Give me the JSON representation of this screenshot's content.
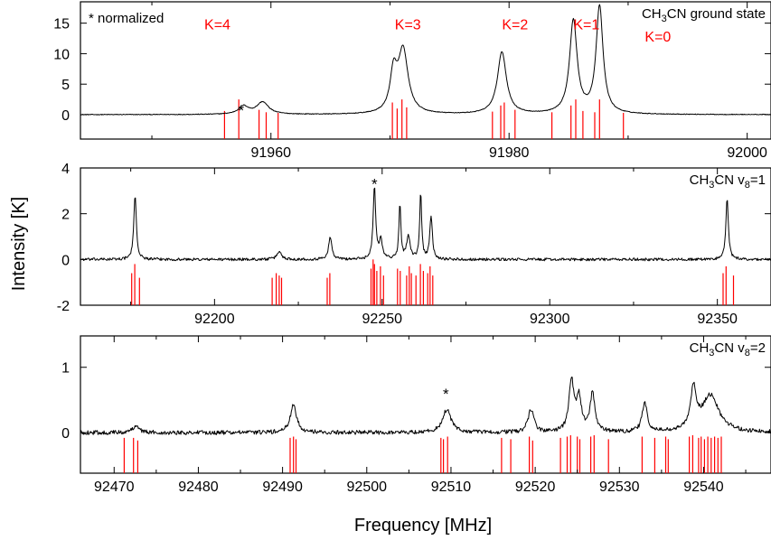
{
  "figure": {
    "ylabel": "Intensity [K]",
    "xlabel": "Frequency [MHz]",
    "note": "* normalized",
    "colors": {
      "spectrum": "#000000",
      "stick": "#ff0000",
      "annotation": "#ff0000",
      "axis": "#000000"
    }
  },
  "chart_data": [
    {
      "type": "line",
      "label_parts": [
        "CH",
        "3",
        "CN ground state"
      ],
      "xlim": [
        91944,
        92002
      ],
      "ylim": [
        -4,
        18.5
      ],
      "xticks": [
        91960,
        91980,
        92000
      ],
      "yticks": [
        0,
        5,
        10,
        15
      ],
      "ytick_labels": [
        "0",
        "5",
        "10",
        "15"
      ],
      "k_labels": [
        {
          "text": "K=4",
          "x": 91955.5,
          "y": 14
        },
        {
          "text": "K=3",
          "x": 91971.5,
          "y": 14
        },
        {
          "text": "K=2",
          "x": 91980.5,
          "y": 14
        },
        {
          "text": "K=1",
          "x": 91986.5,
          "y": 14
        },
        {
          "text": "K=0",
          "x": 91992.5,
          "y": 12
        }
      ],
      "stars": [
        {
          "x": 91957.5,
          "y": 1.6
        }
      ],
      "series": [
        {
          "line": "spectrum",
          "peaks": [
            {
              "x": 91957.7,
              "h": 1.3,
              "w": 0.5
            },
            {
              "x": 91959.3,
              "h": 2.0,
              "w": 0.6
            },
            {
              "x": 91970.3,
              "h": 6.2,
              "w": 0.35
            },
            {
              "x": 91971.1,
              "h": 10.3,
              "w": 0.5
            },
            {
              "x": 91979.4,
              "h": 10.2,
              "w": 0.45
            },
            {
              "x": 91985.4,
              "h": 15.3,
              "w": 0.38
            },
            {
              "x": 91987.6,
              "h": 17.6,
              "w": 0.35
            }
          ],
          "noise": 0.06,
          "x_step": 0.05
        }
      ],
      "stick_bottom": -4,
      "sticks": [
        {
          "x": 91956.1,
          "top": 0.6
        },
        {
          "x": 91957.3,
          "top": 2.5
        },
        {
          "x": 91959.0,
          "top": 0.8
        },
        {
          "x": 91959.6,
          "top": 0.4
        },
        {
          "x": 91960.6,
          "top": 0.3
        },
        {
          "x": 91970.2,
          "top": 2.0
        },
        {
          "x": 91970.6,
          "top": 1.0
        },
        {
          "x": 91971.0,
          "top": 2.5
        },
        {
          "x": 91971.4,
          "top": 1.2
        },
        {
          "x": 91978.6,
          "top": 0.5
        },
        {
          "x": 91979.3,
          "top": 1.5
        },
        {
          "x": 91979.6,
          "top": 2.0
        },
        {
          "x": 91980.5,
          "top": 0.8
        },
        {
          "x": 91983.6,
          "top": 0.4
        },
        {
          "x": 91985.2,
          "top": 1.5
        },
        {
          "x": 91985.6,
          "top": 2.5
        },
        {
          "x": 91986.2,
          "top": 0.6
        },
        {
          "x": 91987.2,
          "top": 0.4
        },
        {
          "x": 91987.6,
          "top": 2.5
        },
        {
          "x": 91989.6,
          "top": 0.3
        }
      ]
    },
    {
      "type": "line",
      "label_parts": [
        "CH",
        "3",
        "CN v",
        "8",
        "=1"
      ],
      "xlim": [
        92160,
        92366
      ],
      "ylim": [
        -2,
        4
      ],
      "xticks": [
        92200,
        92250,
        92300,
        92350
      ],
      "yticks": [
        -2,
        0,
        2,
        4
      ],
      "ytick_labels": [
        "-2",
        "0",
        "2",
        "4"
      ],
      "stars": [
        {
          "x": 92247.7,
          "y": 3.55
        }
      ],
      "series": [
        {
          "line": "spectrum",
          "peaks": [
            {
              "x": 92176.3,
              "h": 2.85,
              "w": 0.45
            },
            {
              "x": 92219.3,
              "h": 0.35,
              "w": 0.8
            },
            {
              "x": 92234.5,
              "h": 0.95,
              "w": 0.6
            },
            {
              "x": 92247.7,
              "h": 3.15,
              "w": 0.45
            },
            {
              "x": 92249.6,
              "h": 0.8,
              "w": 0.6
            },
            {
              "x": 92255.3,
              "h": 2.45,
              "w": 0.35
            },
            {
              "x": 92257.8,
              "h": 1.0,
              "w": 0.6
            },
            {
              "x": 92261.5,
              "h": 2.9,
              "w": 0.35
            },
            {
              "x": 92264.6,
              "h": 1.9,
              "w": 0.45
            },
            {
              "x": 92352.9,
              "h": 2.65,
              "w": 0.45
            }
          ],
          "noise": 0.06,
          "x_step": 0.2
        }
      ],
      "stick_bottom": -2,
      "sticks": [
        {
          "x": 92175.3,
          "top": -0.6
        },
        {
          "x": 92176.2,
          "top": -0.2
        },
        {
          "x": 92177.6,
          "top": -0.8
        },
        {
          "x": 92217.2,
          "top": -0.8
        },
        {
          "x": 92218.4,
          "top": -0.6
        },
        {
          "x": 92219.3,
          "top": -0.7
        },
        {
          "x": 92220.0,
          "top": -0.8
        },
        {
          "x": 92233.6,
          "top": -0.8
        },
        {
          "x": 92234.4,
          "top": -0.6
        },
        {
          "x": 92246.7,
          "top": -0.4
        },
        {
          "x": 92247.3,
          "top": 0.0
        },
        {
          "x": 92247.7,
          "top": -0.2
        },
        {
          "x": 92248.4,
          "top": -0.5
        },
        {
          "x": 92249.5,
          "top": -0.3
        },
        {
          "x": 92250.4,
          "top": -0.7
        },
        {
          "x": 92254.6,
          "top": -0.4
        },
        {
          "x": 92255.4,
          "top": -0.5
        },
        {
          "x": 92257.3,
          "top": -0.7
        },
        {
          "x": 92258.1,
          "top": -0.3
        },
        {
          "x": 92258.7,
          "top": -0.6
        },
        {
          "x": 92260.1,
          "top": -0.7
        },
        {
          "x": 92261.4,
          "top": -0.2
        },
        {
          "x": 92262.3,
          "top": -0.5
        },
        {
          "x": 92263.6,
          "top": -0.6
        },
        {
          "x": 92264.3,
          "top": -0.3
        },
        {
          "x": 92265.1,
          "top": -0.7
        },
        {
          "x": 92351.7,
          "top": -0.6
        },
        {
          "x": 92352.6,
          "top": -0.3
        },
        {
          "x": 92354.8,
          "top": -0.7
        }
      ]
    },
    {
      "type": "line",
      "label_parts": [
        "CH",
        "3",
        "CN v",
        "8",
        "=2"
      ],
      "xlim": [
        92466,
        92548
      ],
      "ylim": [
        -0.62,
        1.48
      ],
      "xticks": [
        92470,
        92480,
        92490,
        92500,
        92510,
        92520,
        92530,
        92540
      ],
      "yticks": [
        0,
        1
      ],
      "ytick_labels": [
        "0",
        "1"
      ],
      "stars": [
        {
          "x": 92509.4,
          "y": 0.68
        }
      ],
      "series": [
        {
          "line": "spectrum",
          "peaks": [
            {
              "x": 92472.6,
              "h": 0.12,
              "w": 0.4
            },
            {
              "x": 92491.3,
              "h": 0.42,
              "w": 0.45
            },
            {
              "x": 92509.5,
              "h": 0.35,
              "w": 0.6
            },
            {
              "x": 92519.5,
              "h": 0.35,
              "w": 0.4
            },
            {
              "x": 92524.3,
              "h": 0.78,
              "w": 0.35
            },
            {
              "x": 92525.2,
              "h": 0.5,
              "w": 0.35
            },
            {
              "x": 92526.8,
              "h": 0.58,
              "w": 0.35
            },
            {
              "x": 92533.0,
              "h": 0.45,
              "w": 0.35
            },
            {
              "x": 92538.8,
              "h": 0.62,
              "w": 0.4
            },
            {
              "x": 92540.8,
              "h": 0.56,
              "w": 1.2
            }
          ],
          "noise": 0.032,
          "x_step": 0.08
        }
      ],
      "stick_bottom": -0.62,
      "sticks": [
        {
          "x": 92471.2,
          "top": -0.08
        },
        {
          "x": 92472.3,
          "top": -0.08
        },
        {
          "x": 92472.8,
          "top": -0.12
        },
        {
          "x": 92490.9,
          "top": -0.08
        },
        {
          "x": 92491.3,
          "top": -0.06
        },
        {
          "x": 92491.6,
          "top": -0.1
        },
        {
          "x": 92508.8,
          "top": -0.08
        },
        {
          "x": 92509.1,
          "top": -0.1
        },
        {
          "x": 92509.6,
          "top": -0.06
        },
        {
          "x": 92516.0,
          "top": -0.08
        },
        {
          "x": 92517.1,
          "top": -0.1
        },
        {
          "x": 92519.3,
          "top": -0.06
        },
        {
          "x": 92519.7,
          "top": -0.12
        },
        {
          "x": 92523.0,
          "top": -0.08
        },
        {
          "x": 92523.8,
          "top": -0.06
        },
        {
          "x": 92524.2,
          "top": -0.04
        },
        {
          "x": 92525.0,
          "top": -0.06
        },
        {
          "x": 92525.3,
          "top": -0.1
        },
        {
          "x": 92526.6,
          "top": -0.06
        },
        {
          "x": 92527.0,
          "top": -0.04
        },
        {
          "x": 92528.7,
          "top": -0.1
        },
        {
          "x": 92532.7,
          "top": -0.06
        },
        {
          "x": 92534.2,
          "top": -0.08
        },
        {
          "x": 92535.5,
          "top": -0.06
        },
        {
          "x": 92535.8,
          "top": -0.1
        },
        {
          "x": 92538.3,
          "top": -0.06
        },
        {
          "x": 92538.7,
          "top": -0.04
        },
        {
          "x": 92539.4,
          "top": -0.08
        },
        {
          "x": 92539.7,
          "top": -0.06
        },
        {
          "x": 92540.1,
          "top": -0.1
        },
        {
          "x": 92540.5,
          "top": -0.06
        },
        {
          "x": 92540.9,
          "top": -0.08
        },
        {
          "x": 92541.3,
          "top": -0.06
        },
        {
          "x": 92541.7,
          "top": -0.08
        },
        {
          "x": 92542.1,
          "top": -0.06
        }
      ]
    }
  ]
}
